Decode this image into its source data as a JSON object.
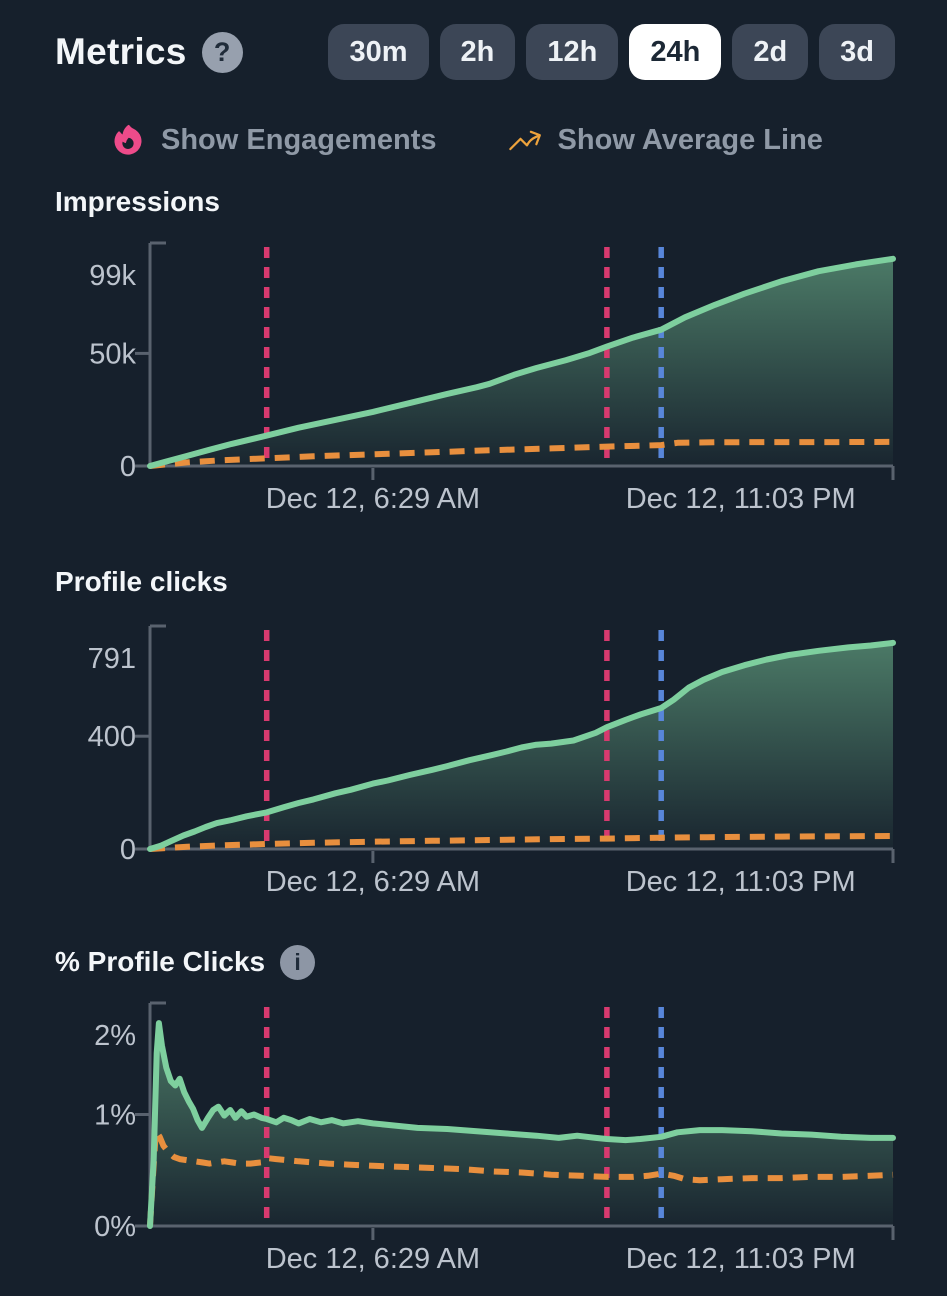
{
  "header": {
    "title": "Metrics",
    "help_glyph": "?",
    "ranges": [
      {
        "label": "30m",
        "active": false
      },
      {
        "label": "2h",
        "active": false
      },
      {
        "label": "12h",
        "active": false
      },
      {
        "label": "24h",
        "active": true
      },
      {
        "label": "2d",
        "active": false
      },
      {
        "label": "3d",
        "active": false
      }
    ]
  },
  "toggles": [
    {
      "label": "Show Engagements",
      "icon": "flame-icon",
      "icon_color": "#ee4b8a"
    },
    {
      "label": "Show Average Line",
      "icon": "trending-up-icon",
      "icon_color": "#eea33c"
    }
  ],
  "info_glyph": "i",
  "colors": {
    "background": "#16202c",
    "button": "#3c4656",
    "button_active": "#ffffff",
    "axis": "#59626e",
    "tick_text": "#bcc3cd",
    "title_text": "#f3f6f9",
    "green": "#7ecf9e",
    "orange": "#e88f3e",
    "pink": "#d83a6f",
    "blue": "#5886d9"
  },
  "chart_data": [
    {
      "type": "area",
      "title": "Impressions",
      "legend_hidden": true,
      "y_axis": {
        "max": 99000,
        "ticks": [
          {
            "label": "99k",
            "value": 99000
          },
          {
            "label": "50k",
            "value": 50000
          },
          {
            "label": "0",
            "value": 0
          }
        ]
      },
      "x_axis": {
        "ticks": [
          {
            "label": "Dec 12, 6:29 AM",
            "pos": 0.3,
            "tick_pos": 0.3
          },
          {
            "label": "Dec 12, 11:03 PM",
            "pos": 0.795,
            "tick_pos": 1.0
          }
        ]
      },
      "markers": [
        {
          "color": "pink",
          "pos": 0.157
        },
        {
          "color": "pink",
          "pos": 0.615
        },
        {
          "color": "blue",
          "pos": 0.688
        }
      ],
      "series": [
        {
          "name": "Impressions",
          "style": "solid",
          "color": "#7ecf9e",
          "points": [
            [
              0,
              0
            ],
            [
              0.02,
              1800
            ],
            [
              0.05,
              4500
            ],
            [
              0.08,
              7200
            ],
            [
              0.11,
              9800
            ],
            [
              0.157,
              13500
            ],
            [
              0.2,
              17000
            ],
            [
              0.25,
              20500
            ],
            [
              0.3,
              24000
            ],
            [
              0.35,
              28000
            ],
            [
              0.4,
              32000
            ],
            [
              0.44,
              35000
            ],
            [
              0.457,
              36500
            ],
            [
              0.49,
              40500
            ],
            [
              0.52,
              43500
            ],
            [
              0.56,
              47000
            ],
            [
              0.59,
              50000
            ],
            [
              0.615,
              53000
            ],
            [
              0.65,
              57000
            ],
            [
              0.688,
              60500
            ],
            [
              0.72,
              66000
            ],
            [
              0.76,
              71500
            ],
            [
              0.8,
              76500
            ],
            [
              0.85,
              82000
            ],
            [
              0.9,
              86500
            ],
            [
              0.95,
              89500
            ],
            [
              1,
              92000
            ]
          ]
        },
        {
          "name": "Average",
          "style": "dashed",
          "color": "#e88f3e",
          "points": [
            [
              0,
              0
            ],
            [
              0.05,
              1600
            ],
            [
              0.1,
              2600
            ],
            [
              0.157,
              3400
            ],
            [
              0.22,
              4300
            ],
            [
              0.3,
              5200
            ],
            [
              0.38,
              6100
            ],
            [
              0.46,
              7000
            ],
            [
              0.54,
              7800
            ],
            [
              0.615,
              8600
            ],
            [
              0.66,
              9000
            ],
            [
              0.688,
              9300
            ],
            [
              0.71,
              10300
            ],
            [
              0.76,
              10500
            ],
            [
              0.84,
              10600
            ],
            [
              0.92,
              10600
            ],
            [
              1,
              10700
            ]
          ]
        }
      ]
    },
    {
      "type": "area",
      "title": "Profile clicks",
      "y_axis": {
        "max": 791,
        "ticks": [
          {
            "label": "791",
            "value": 791
          },
          {
            "label": "400",
            "value": 400
          },
          {
            "label": "0",
            "value": 0
          }
        ]
      },
      "x_axis": {
        "ticks": [
          {
            "label": "Dec 12, 6:29 AM",
            "pos": 0.3,
            "tick_pos": 0.3
          },
          {
            "label": "Dec 12, 11:03 PM",
            "pos": 0.795,
            "tick_pos": 1.0
          }
        ]
      },
      "markers": [
        {
          "color": "pink",
          "pos": 0.157
        },
        {
          "color": "pink",
          "pos": 0.615
        },
        {
          "color": "blue",
          "pos": 0.688
        }
      ],
      "series": [
        {
          "name": "Profile clicks",
          "style": "solid",
          "color": "#7ecf9e",
          "points": [
            [
              0,
              0
            ],
            [
              0.015,
              12
            ],
            [
              0.03,
              30
            ],
            [
              0.045,
              48
            ],
            [
              0.06,
              62
            ],
            [
              0.075,
              78
            ],
            [
              0.09,
              92
            ],
            [
              0.11,
              103
            ],
            [
              0.13,
              116
            ],
            [
              0.157,
              130
            ],
            [
              0.18,
              148
            ],
            [
              0.2,
              163
            ],
            [
              0.22,
              176
            ],
            [
              0.25,
              198
            ],
            [
              0.27,
              210
            ],
            [
              0.3,
              232
            ],
            [
              0.32,
              243
            ],
            [
              0.35,
              263
            ],
            [
              0.38,
              281
            ],
            [
              0.4,
              294
            ],
            [
              0.43,
              315
            ],
            [
              0.46,
              333
            ],
            [
              0.48,
              346
            ],
            [
              0.5,
              360
            ],
            [
              0.52,
              370
            ],
            [
              0.54,
              374
            ],
            [
              0.57,
              385
            ],
            [
              0.6,
              412
            ],
            [
              0.615,
              432
            ],
            [
              0.64,
              458
            ],
            [
              0.66,
              477
            ],
            [
              0.688,
              500
            ],
            [
              0.705,
              530
            ],
            [
              0.725,
              572
            ],
            [
              0.745,
              600
            ],
            [
              0.77,
              628
            ],
            [
              0.8,
              652
            ],
            [
              0.83,
              672
            ],
            [
              0.86,
              688
            ],
            [
              0.9,
              703
            ],
            [
              0.94,
              715
            ],
            [
              0.97,
              722
            ],
            [
              1,
              731
            ]
          ]
        },
        {
          "name": "Average",
          "style": "dashed",
          "color": "#e88f3e",
          "points": [
            [
              0,
              0
            ],
            [
              0.05,
              8
            ],
            [
              0.1,
              13
            ],
            [
              0.157,
              18
            ],
            [
              0.22,
              22
            ],
            [
              0.3,
              26
            ],
            [
              0.38,
              29
            ],
            [
              0.46,
              32
            ],
            [
              0.54,
              35
            ],
            [
              0.615,
              37
            ],
            [
              0.688,
              40
            ],
            [
              0.75,
              42
            ],
            [
              0.85,
              44
            ],
            [
              1,
              46
            ]
          ]
        }
      ]
    },
    {
      "type": "area",
      "title": "% Profile Clicks",
      "has_info_icon": true,
      "y_axis": {
        "max": 2,
        "ticks": [
          {
            "label": "2%",
            "value": 2
          },
          {
            "label": "1%",
            "value": 1
          },
          {
            "label": "0%",
            "value": 0
          }
        ]
      },
      "x_axis": {
        "ticks": [
          {
            "label": "Dec 12, 6:29 AM",
            "pos": 0.3,
            "tick_pos": 0.3
          },
          {
            "label": "Dec 12, 11:03 PM",
            "pos": 0.795,
            "tick_pos": 1.0
          }
        ]
      },
      "markers": [
        {
          "color": "pink",
          "pos": 0.157
        },
        {
          "color": "pink",
          "pos": 0.615
        },
        {
          "color": "blue",
          "pos": 0.688
        }
      ],
      "series": [
        {
          "name": "% Profile Clicks",
          "style": "solid",
          "color": "#7ecf9e",
          "points": [
            [
              0,
              0
            ],
            [
              0.005,
              0.6
            ],
            [
              0.009,
              1.55
            ],
            [
              0.012,
              1.82
            ],
            [
              0.016,
              1.62
            ],
            [
              0.022,
              1.42
            ],
            [
              0.028,
              1.3
            ],
            [
              0.034,
              1.26
            ],
            [
              0.04,
              1.32
            ],
            [
              0.046,
              1.2
            ],
            [
              0.052,
              1.12
            ],
            [
              0.058,
              1.05
            ],
            [
              0.064,
              0.95
            ],
            [
              0.07,
              0.88
            ],
            [
              0.078,
              0.97
            ],
            [
              0.085,
              1.04
            ],
            [
              0.092,
              1.07
            ],
            [
              0.1,
              0.99
            ],
            [
              0.108,
              1.04
            ],
            [
              0.115,
              0.97
            ],
            [
              0.123,
              1.03
            ],
            [
              0.13,
              0.98
            ],
            [
              0.14,
              1.0
            ],
            [
              0.15,
              0.97
            ],
            [
              0.157,
              0.96
            ],
            [
              0.17,
              0.93
            ],
            [
              0.18,
              0.97
            ],
            [
              0.19,
              0.95
            ],
            [
              0.2,
              0.92
            ],
            [
              0.215,
              0.96
            ],
            [
              0.23,
              0.93
            ],
            [
              0.245,
              0.95
            ],
            [
              0.26,
              0.92
            ],
            [
              0.28,
              0.94
            ],
            [
              0.3,
              0.92
            ],
            [
              0.33,
              0.9
            ],
            [
              0.36,
              0.88
            ],
            [
              0.4,
              0.87
            ],
            [
              0.44,
              0.85
            ],
            [
              0.48,
              0.83
            ],
            [
              0.52,
              0.81
            ],
            [
              0.55,
              0.79
            ],
            [
              0.575,
              0.81
            ],
            [
              0.6,
              0.79
            ],
            [
              0.615,
              0.78
            ],
            [
              0.64,
              0.77
            ],
            [
              0.66,
              0.78
            ],
            [
              0.688,
              0.8
            ],
            [
              0.71,
              0.84
            ],
            [
              0.74,
              0.86
            ],
            [
              0.77,
              0.86
            ],
            [
              0.81,
              0.85
            ],
            [
              0.85,
              0.83
            ],
            [
              0.89,
              0.82
            ],
            [
              0.93,
              0.8
            ],
            [
              0.97,
              0.79
            ],
            [
              1,
              0.79
            ]
          ]
        },
        {
          "name": "Average",
          "style": "dashed",
          "color": "#e88f3e",
          "points": [
            [
              0,
              0
            ],
            [
              0.004,
              0.45
            ],
            [
              0.008,
              0.85
            ],
            [
              0.013,
              0.8
            ],
            [
              0.018,
              0.72
            ],
            [
              0.025,
              0.66
            ],
            [
              0.032,
              0.62
            ],
            [
              0.04,
              0.6
            ],
            [
              0.05,
              0.59
            ],
            [
              0.06,
              0.58
            ],
            [
              0.07,
              0.57
            ],
            [
              0.08,
              0.56
            ],
            [
              0.09,
              0.57
            ],
            [
              0.1,
              0.58
            ],
            [
              0.11,
              0.57
            ],
            [
              0.12,
              0.56
            ],
            [
              0.135,
              0.56
            ],
            [
              0.15,
              0.57
            ],
            [
              0.157,
              0.61
            ],
            [
              0.17,
              0.6
            ],
            [
              0.185,
              0.59
            ],
            [
              0.2,
              0.58
            ],
            [
              0.22,
              0.57
            ],
            [
              0.24,
              0.56
            ],
            [
              0.27,
              0.55
            ],
            [
              0.3,
              0.54
            ],
            [
              0.34,
              0.53
            ],
            [
              0.38,
              0.52
            ],
            [
              0.42,
              0.51
            ],
            [
              0.46,
              0.49
            ],
            [
              0.5,
              0.48
            ],
            [
              0.54,
              0.46
            ],
            [
              0.58,
              0.45
            ],
            [
              0.615,
              0.44
            ],
            [
              0.65,
              0.44
            ],
            [
              0.67,
              0.45
            ],
            [
              0.688,
              0.47
            ],
            [
              0.705,
              0.45
            ],
            [
              0.72,
              0.42
            ],
            [
              0.74,
              0.41
            ],
            [
              0.77,
              0.42
            ],
            [
              0.81,
              0.43
            ],
            [
              0.85,
              0.43
            ],
            [
              0.89,
              0.44
            ],
            [
              0.93,
              0.44
            ],
            [
              0.97,
              0.45
            ],
            [
              1,
              0.46
            ]
          ]
        }
      ]
    }
  ]
}
